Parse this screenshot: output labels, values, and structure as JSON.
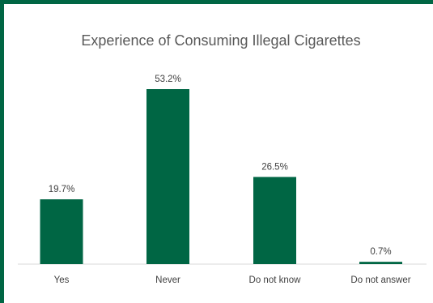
{
  "chart_data": {
    "type": "bar",
    "title": "Experience of Consuming Illegal Cigarettes",
    "categories": [
      "Yes",
      "Never",
      "Do not know",
      "Do not answer"
    ],
    "values": [
      19.7,
      53.2,
      26.5,
      0.7
    ],
    "data_labels": [
      "19.7%",
      "53.2%",
      "26.5%",
      "0.7%"
    ],
    "unit": "%",
    "ylim": [
      0,
      53.2
    ],
    "grid": false,
    "legend": "none",
    "bar_color": "#006644",
    "frame_color": "#006644",
    "axis_color": "#d9d9d9"
  }
}
